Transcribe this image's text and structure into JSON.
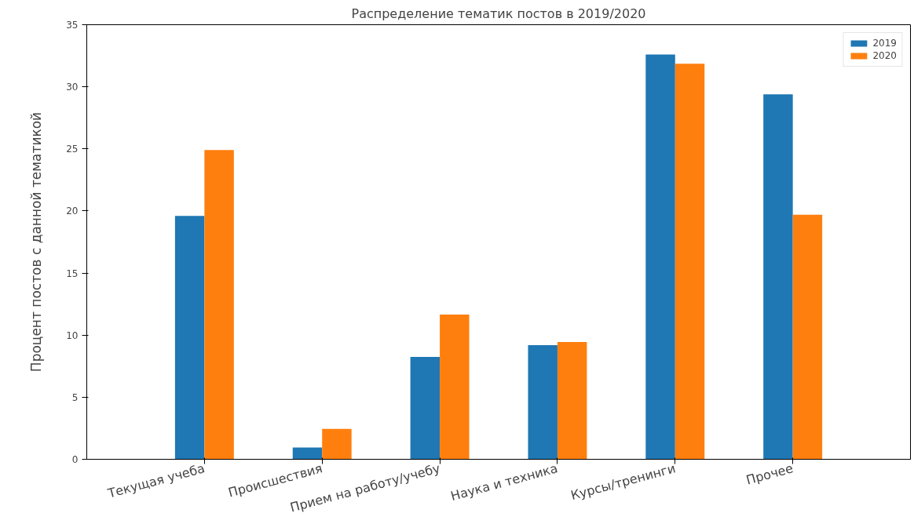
{
  "chart_data": {
    "type": "bar",
    "title": "Распределение тематик постов в 2019/2020",
    "ylabel": "Процент постов с данной тематикой",
    "categories": [
      "Текущая учеба",
      "Происшествия",
      "Прием на работу/учебу",
      "Наука и техника",
      "Курсы/тренинги",
      "Прочее"
    ],
    "series": [
      {
        "name": "2019",
        "color": "#1f77b4",
        "values": [
          19.6,
          0.95,
          8.25,
          9.2,
          32.6,
          29.4
        ]
      },
      {
        "name": "2020",
        "color": "#ff7f0e",
        "values": [
          24.9,
          2.45,
          11.65,
          9.45,
          31.85,
          19.7
        ]
      }
    ],
    "ylim": [
      0,
      35
    ],
    "yticks": [
      0,
      5,
      10,
      15,
      20,
      25,
      30,
      35
    ],
    "grid": false,
    "legend": "top right"
  }
}
